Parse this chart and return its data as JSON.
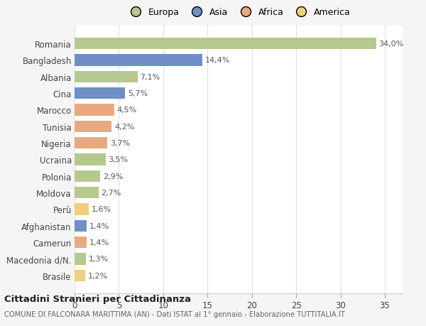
{
  "categories": [
    "Romania",
    "Bangladesh",
    "Albania",
    "Cina",
    "Marocco",
    "Tunisia",
    "Nigeria",
    "Ucraina",
    "Polonia",
    "Moldova",
    "Perù",
    "Afghanistan",
    "Camerun",
    "Macedonia d/N.",
    "Brasile"
  ],
  "values": [
    34.0,
    14.4,
    7.1,
    5.7,
    4.5,
    4.2,
    3.7,
    3.5,
    2.9,
    2.7,
    1.6,
    1.4,
    1.4,
    1.3,
    1.2
  ],
  "labels": [
    "34,0%",
    "14,4%",
    "7,1%",
    "5,7%",
    "4,5%",
    "4,2%",
    "3,7%",
    "3,5%",
    "2,9%",
    "2,7%",
    "1,6%",
    "1,4%",
    "1,4%",
    "1,3%",
    "1,2%"
  ],
  "colors": [
    "#b5c98e",
    "#6e8fc7",
    "#b5c98e",
    "#6e8fc7",
    "#e8a97e",
    "#e8a97e",
    "#e8a97e",
    "#b5c98e",
    "#b5c98e",
    "#b5c98e",
    "#f0d07a",
    "#6e8fc7",
    "#e8a97e",
    "#b5c98e",
    "#f0d07a"
  ],
  "legend_labels": [
    "Europa",
    "Asia",
    "Africa",
    "America"
  ],
  "legend_colors": [
    "#b5c98e",
    "#6e8fc7",
    "#e8a97e",
    "#f0d07a"
  ],
  "title1": "Cittadini Stranieri per Cittadinanza",
  "title2": "COMUNE DI FALCONARA MARITTIMA (AN) - Dati ISTAT al 1° gennaio - Elaborazione TUTTITALIA.IT",
  "xlim": [
    0,
    37
  ],
  "xticks": [
    0,
    5,
    10,
    15,
    20,
    25,
    30,
    35
  ],
  "bg_color": "#f5f5f5",
  "plot_bg_color": "#ffffff",
  "grid_color": "#e0e0e0"
}
